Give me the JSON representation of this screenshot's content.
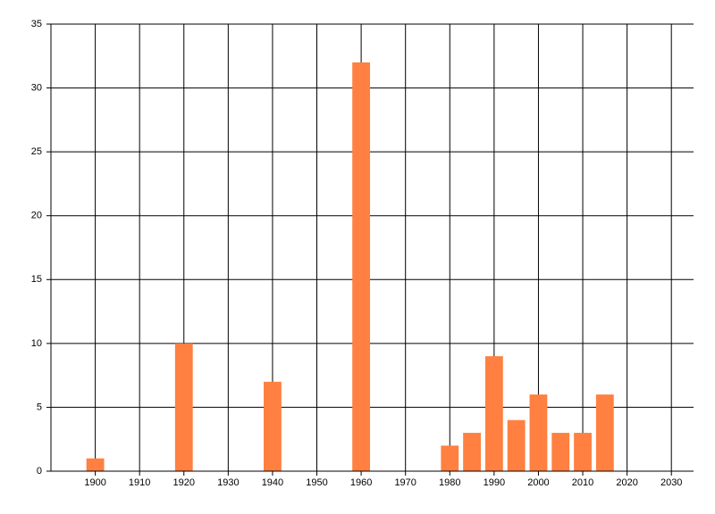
{
  "chart_data": {
    "type": "bar",
    "x": [
      1900,
      1920,
      1940,
      1960,
      1980,
      1985,
      1990,
      1995,
      2000,
      2005,
      2010,
      2015
    ],
    "values": [
      1,
      10,
      7,
      32,
      2,
      3,
      9,
      4,
      6,
      3,
      3,
      6
    ],
    "color": "#ff8040",
    "xlim": [
      1890,
      2035
    ],
    "xticks": [
      1900,
      1910,
      1920,
      1930,
      1940,
      1950,
      1960,
      1970,
      1980,
      1990,
      2000,
      2010,
      2020,
      2030
    ],
    "ylim": [
      0,
      35
    ],
    "yticks": [
      0,
      5,
      10,
      15,
      20,
      25,
      30,
      35
    ],
    "grid": true
  }
}
